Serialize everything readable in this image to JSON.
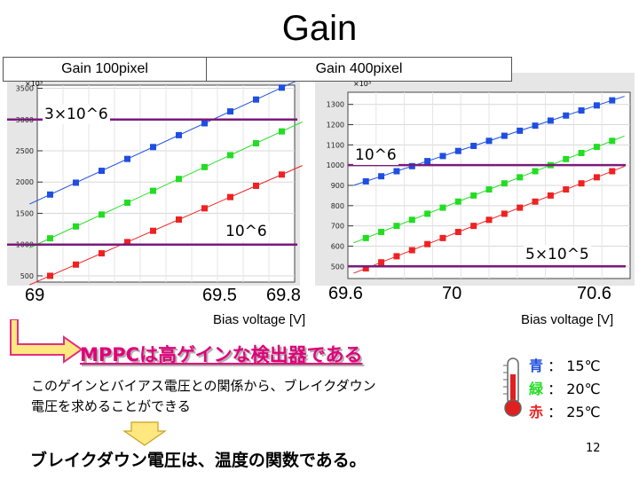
{
  "title": "Gain",
  "colors": {
    "blue": "#1f4fe0",
    "green": "#22dd22",
    "red": "#ee2222",
    "purple": "#7a1a7a",
    "mppc": "#e0007a",
    "arrow_yellow": "#ffe880"
  },
  "icons": {
    "thermometer": "thermometer-icon",
    "arrow_elbow": "elbow-arrow-icon",
    "arrow_down": "down-arrow-icon"
  },
  "chart_data": [
    {
      "type": "scatter",
      "panel_label": "Gain 100pixel",
      "xlabel": "Bias voltage [V]",
      "x_tick_labels": [
        "69",
        "69.5",
        "69.8"
      ],
      "xlim": [
        69.0,
        70.0
      ],
      "y_exponent_label": "×10³",
      "ylim": [
        400,
        3550
      ],
      "yticks": [
        500,
        1000,
        1500,
        2000,
        2500,
        3000,
        3500
      ],
      "series": [
        {
          "name": "青",
          "x": [
            69.05,
            69.15,
            69.25,
            69.35,
            69.45,
            69.55,
            69.65,
            69.75,
            69.85,
            69.95
          ],
          "y": [
            1800,
            1990,
            2180,
            2370,
            2560,
            2750,
            2940,
            3130,
            3320,
            3510
          ]
        },
        {
          "name": "緑",
          "x": [
            69.05,
            69.15,
            69.25,
            69.35,
            69.45,
            69.55,
            69.65,
            69.75,
            69.85,
            69.95
          ],
          "y": [
            1100,
            1290,
            1480,
            1670,
            1860,
            2050,
            2240,
            2430,
            2620,
            2810
          ]
        },
        {
          "name": "赤",
          "x": [
            69.05,
            69.15,
            69.25,
            69.35,
            69.45,
            69.55,
            69.65,
            69.75,
            69.85,
            69.95
          ],
          "y": [
            500,
            680,
            860,
            1040,
            1220,
            1400,
            1580,
            1760,
            1940,
            2120
          ]
        }
      ],
      "hlines": [
        {
          "y": 3000,
          "label": "3×10^6"
        },
        {
          "y": 1000,
          "label": "10^6"
        }
      ]
    },
    {
      "type": "scatter",
      "panel_label": "Gain 400pixel",
      "xlabel": "Bias voltage [V]",
      "x_tick_labels": [
        "69.6",
        "70",
        "70.6"
      ],
      "xlim": [
        69.55,
        70.65
      ],
      "y_exponent_label": "×10³",
      "ylim": [
        440,
        1360
      ],
      "yticks": [
        500,
        600,
        700,
        800,
        900,
        1000,
        1100,
        1200,
        1300
      ],
      "series": [
        {
          "name": "青",
          "x": [
            69.62,
            69.68,
            69.74,
            69.8,
            69.86,
            69.92,
            69.98,
            70.04,
            70.1,
            70.16,
            70.22,
            70.28,
            70.34,
            70.4,
            70.46,
            70.52,
            70.58
          ],
          "y": [
            920,
            945,
            970,
            995,
            1020,
            1045,
            1070,
            1095,
            1120,
            1145,
            1170,
            1195,
            1220,
            1245,
            1270,
            1295,
            1320
          ]
        },
        {
          "name": "緑",
          "x": [
            69.62,
            69.68,
            69.74,
            69.8,
            69.86,
            69.92,
            69.98,
            70.04,
            70.1,
            70.16,
            70.22,
            70.28,
            70.34,
            70.4,
            70.46,
            70.52,
            70.58
          ],
          "y": [
            640,
            670,
            700,
            730,
            760,
            790,
            820,
            850,
            880,
            910,
            940,
            970,
            1000,
            1030,
            1060,
            1090,
            1120
          ]
        },
        {
          "name": "赤",
          "x": [
            69.62,
            69.68,
            69.74,
            69.8,
            69.86,
            69.92,
            69.98,
            70.04,
            70.1,
            70.16,
            70.22,
            70.28,
            70.34,
            70.4,
            70.46,
            70.52,
            70.58
          ],
          "y": [
            490,
            520,
            550,
            580,
            610,
            640,
            670,
            700,
            730,
            760,
            790,
            820,
            850,
            880,
            910,
            940,
            970
          ]
        }
      ],
      "hlines": [
        {
          "y": 1000,
          "label": "10^6"
        },
        {
          "y": 500,
          "label": "5×10^5"
        }
      ]
    }
  ],
  "mppc_statement": "MPPCは高ゲインな検出器である",
  "relation_text_1": "このゲインとバイアス電圧との関係から、ブレイクダウン",
  "relation_text_2": "電圧を求めることができる",
  "conclusion": "ブレイクダウン電圧は、温度の関数である。",
  "legend": [
    {
      "name": "青",
      "sep": "：",
      "temp": "15℃",
      "color": "#1f4fe0"
    },
    {
      "name": "緑",
      "sep": "：",
      "temp": "20℃",
      "color": "#22dd22"
    },
    {
      "name": "赤",
      "sep": "：",
      "temp": "25℃",
      "color": "#ee2222"
    }
  ],
  "page_number": "12"
}
